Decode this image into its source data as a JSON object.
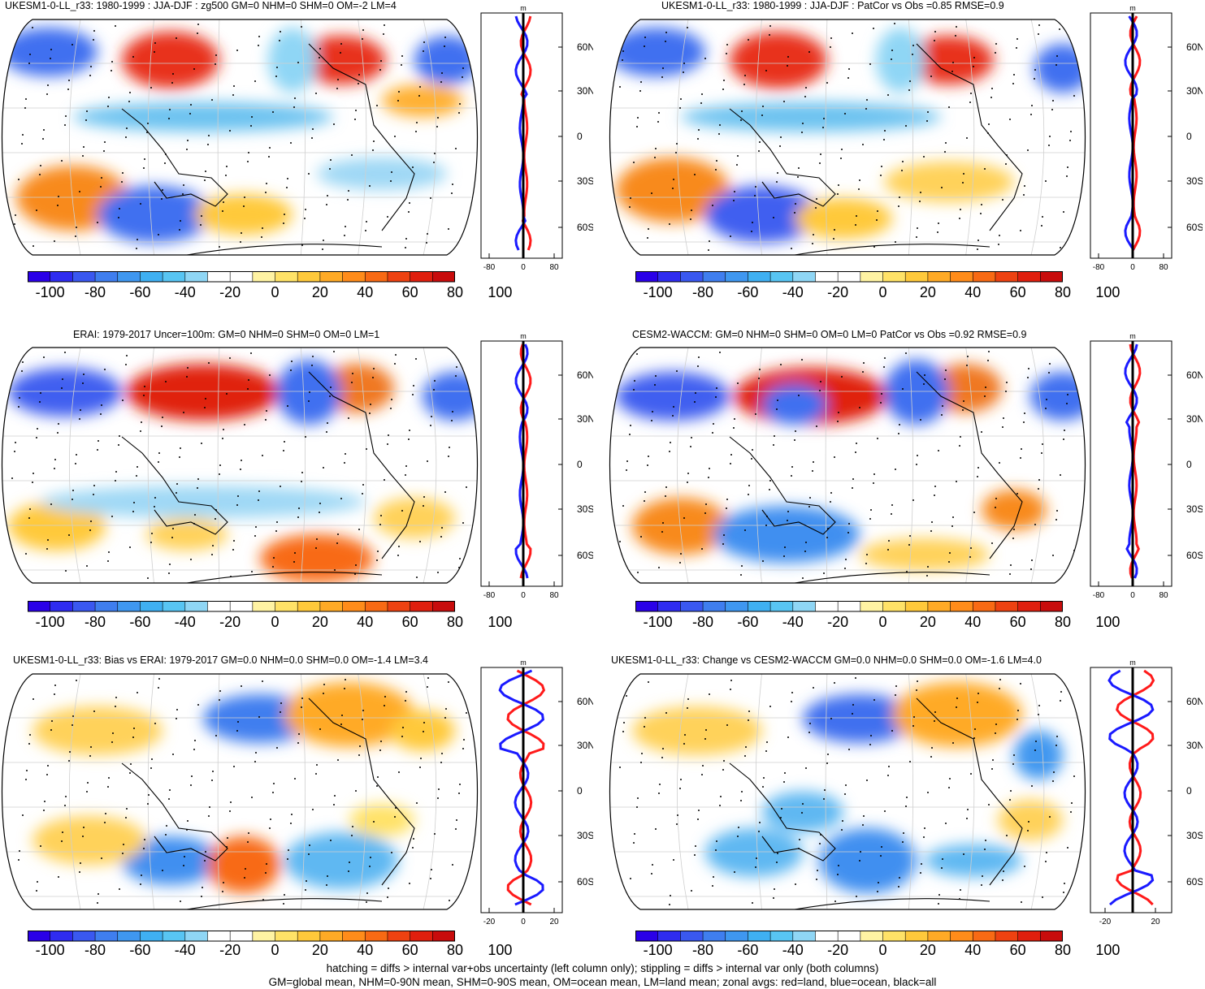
{
  "panels": [
    {
      "title": "UKESM1-0-LL_r33: 1980-1999 : JJA-DJF : zg500 GM=0 NHM=0 SHM=0 OM=-2 LM=4",
      "zonal_ticks": [
        "-80",
        "0",
        "80"
      ],
      "zonal_unit": "m",
      "lat_labels": [
        "60N",
        "30N",
        "0",
        "30S",
        "60S"
      ]
    },
    {
      "title": "UKESM1-0-LL_r33: 1980-1999 : JJA-DJF : PatCor vs Obs =0.85 RMSE=0.9",
      "zonal_ticks": [
        "-80",
        "0",
        "80"
      ],
      "zonal_unit": "m",
      "lat_labels": [
        "60N",
        "30N",
        "0",
        "30S",
        "60S"
      ]
    },
    {
      "title": "ERAI: 1979-2017 Uncer=100m: GM=0 NHM=0 SHM=0 OM=0 LM=1",
      "zonal_ticks": [
        "-80",
        "0",
        "80"
      ],
      "zonal_unit": "m",
      "lat_labels": [
        "60N",
        "30N",
        "0",
        "30S",
        "60S"
      ]
    },
    {
      "title": "CESM2-WACCM: GM=0 NHM=0 SHM=0 OM=0 LM=0 PatCor vs Obs =0.92 RMSE=0.9",
      "zonal_ticks": [
        "-80",
        "0",
        "80"
      ],
      "zonal_unit": "m",
      "lat_labels": [
        "60N",
        "30N",
        "0",
        "30S",
        "60S"
      ]
    },
    {
      "title": "UKESM1-0-LL_r33: Bias vs ERAI: 1979-2017 GM=0.0 NHM=0.0 SHM=0.0 OM=-1.4 LM=3.4",
      "zonal_ticks": [
        "-20",
        "0",
        "20"
      ],
      "zonal_unit": "m",
      "lat_labels": [
        "60N",
        "30N",
        "0",
        "30S",
        "60S"
      ]
    },
    {
      "title": "UKESM1-0-LL_r33: Change vs CESM2-WACCM GM=0.0 NHM=0.0 SHM=0.0 OM=-1.6 LM=4.0",
      "zonal_ticks": [
        "-20",
        "20"
      ],
      "zonal_unit": "m",
      "lat_labels": [
        "60N",
        "30N",
        "0",
        "30S",
        "60S"
      ]
    }
  ],
  "colorbar": {
    "labels": [
      "-100",
      "-80",
      "-60",
      "-40",
      "-20",
      "0",
      "20",
      "40",
      "60",
      "80",
      "100"
    ],
    "colors": [
      "#2a00e8",
      "#2f2cf0",
      "#3a58f0",
      "#3f7eef",
      "#3f97f0",
      "#3fb0f2",
      "#58c5f3",
      "#8fd6f5",
      "#ffffff",
      "#ffffff",
      "#fff3a3",
      "#ffe267",
      "#ffc93b",
      "#ffaa26",
      "#ff8c1a",
      "#f86a14",
      "#ee4211",
      "#e01f0e",
      "#c80c0c"
    ]
  },
  "footer": {
    "line1": "hatching = diffs > internal var+obs uncertainty (left column only); stippling = diffs > internal var only (both columns)",
    "line2": "GM=global mean, NHM=0-90N mean, SHM=0-90S mean, OM=ocean mean, LM=land mean; zonal avgs: red=land, blue=ocean, black=all"
  }
}
